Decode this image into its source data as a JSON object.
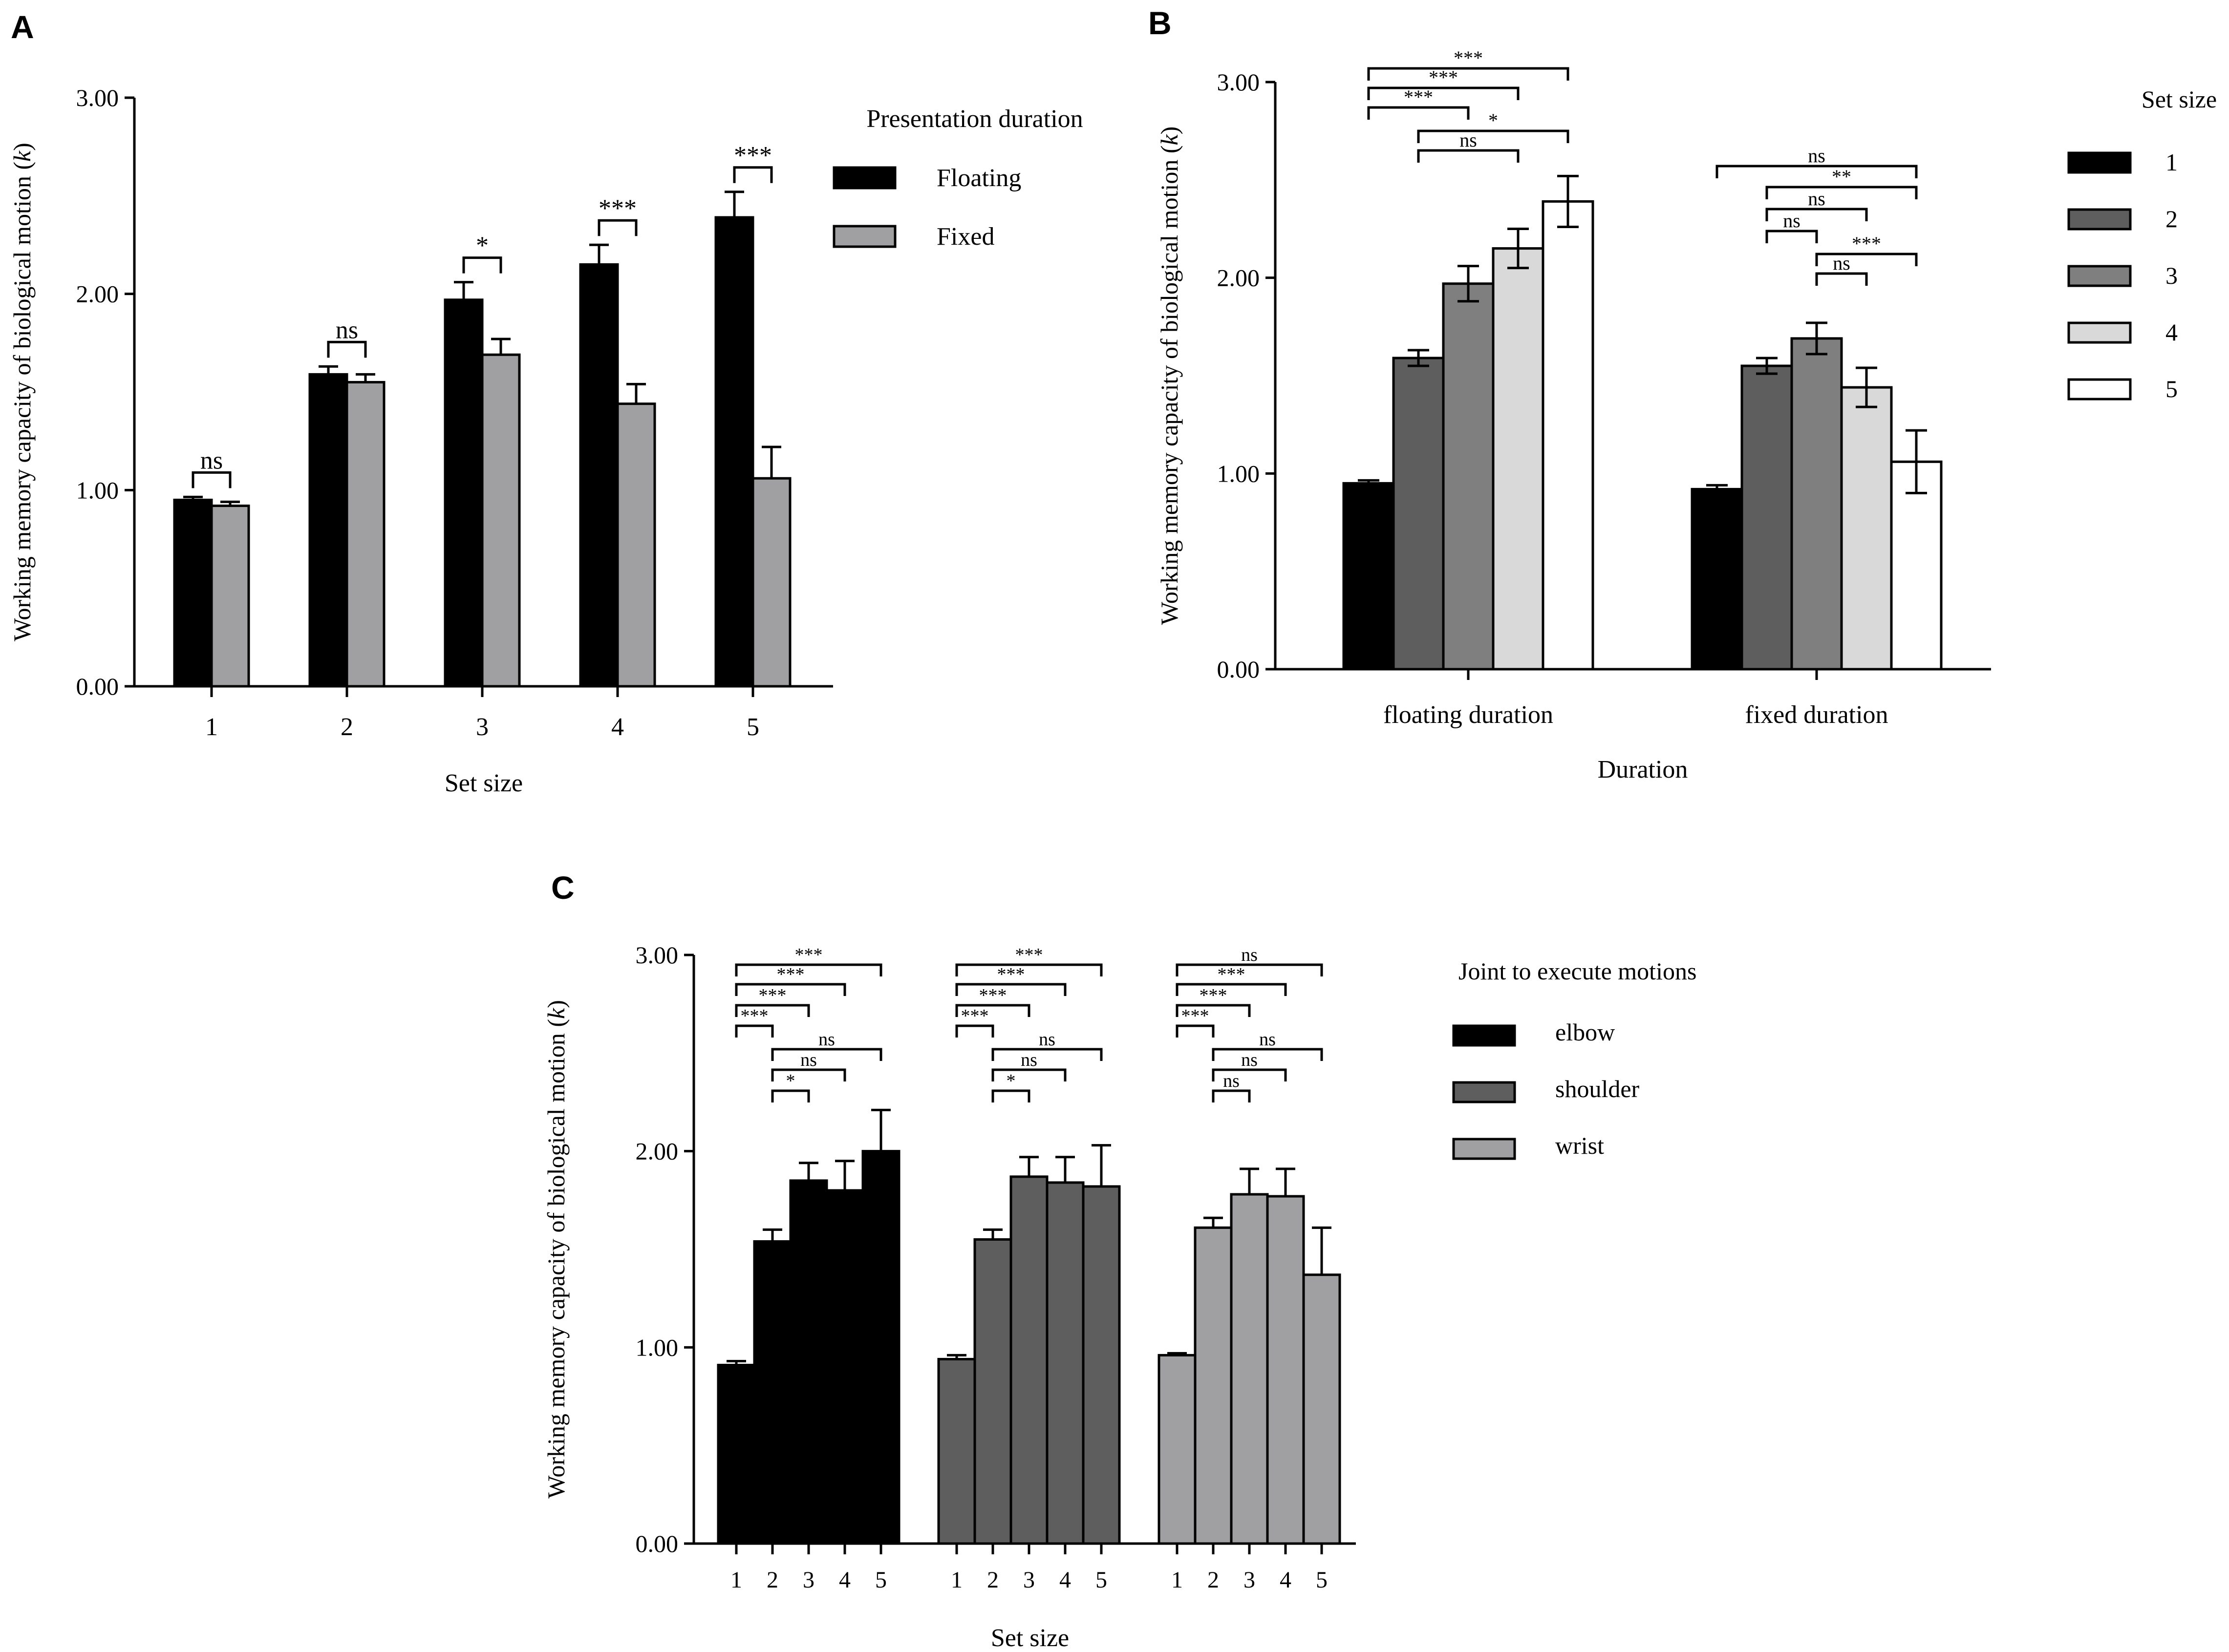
{
  "colors": {
    "black": "#000000",
    "dark_gray": "#5e5e5e",
    "mid_gray": "#7f7f7f",
    "gray": "#a0a0a2",
    "light_gray": "#d9d9d9",
    "white": "#ffffff"
  },
  "chart_data": [
    {
      "panel_label": "A",
      "type": "bar",
      "title": "",
      "xlabel": "Set size",
      "ylabel_prefix": "Working memory capacity of  biological motion (",
      "ylabel_var": "k",
      "ylabel_suffix": ")",
      "ylim": [
        0,
        3
      ],
      "yticks": [
        "0.00",
        "1.00",
        "2.00",
        "3.00"
      ],
      "categories": [
        "1",
        "2",
        "3",
        "4",
        "5"
      ],
      "legend_title": "Presentation duration",
      "legend_position": "top-right",
      "series": [
        {
          "name": "Floating",
          "color": "#000000",
          "values": [
            0.95,
            1.59,
            1.97,
            2.15,
            2.39
          ],
          "errors": [
            0.015,
            0.04,
            0.09,
            0.1,
            0.13
          ]
        },
        {
          "name": "Fixed",
          "color": "#a0a0a2",
          "values": [
            0.92,
            1.55,
            1.69,
            1.44,
            1.06
          ],
          "errors": [
            0.02,
            0.04,
            0.08,
            0.1,
            0.16
          ]
        }
      ],
      "annotations": [
        {
          "category": "1",
          "text": "ns"
        },
        {
          "category": "2",
          "text": "ns"
        },
        {
          "category": "3",
          "text": "*"
        },
        {
          "category": "4",
          "text": "***"
        },
        {
          "category": "5",
          "text": "***"
        }
      ]
    },
    {
      "panel_label": "B",
      "type": "bar",
      "title": "",
      "xlabel": "Duration",
      "ylabel_prefix": "Working memory capacity of  biological motion (",
      "ylabel_var": "k",
      "ylabel_suffix": ")",
      "ylim": [
        0,
        3
      ],
      "yticks": [
        "0.00",
        "1.00",
        "2.00",
        "3.00"
      ],
      "categories": [
        "floating duration",
        "fixed duration"
      ],
      "legend_title": "Set size",
      "legend_position": "right",
      "series": [
        {
          "name": "1",
          "color": "#000000",
          "values": [
            0.95,
            0.92
          ],
          "errors": [
            0.015,
            0.02
          ]
        },
        {
          "name": "2",
          "color": "#5e5e5e",
          "values": [
            1.59,
            1.55
          ],
          "errors": [
            0.04,
            0.04
          ]
        },
        {
          "name": "3",
          "color": "#7f7f7f",
          "values": [
            1.97,
            1.69
          ],
          "errors": [
            0.09,
            0.08
          ]
        },
        {
          "name": "4",
          "color": "#d9d9d9",
          "values": [
            2.15,
            1.44
          ],
          "errors": [
            0.1,
            0.1
          ]
        },
        {
          "name": "5",
          "color": "#ffffff",
          "values": [
            2.39,
            1.06
          ],
          "errors": [
            0.13,
            0.16
          ]
        }
      ],
      "annotations": [
        {
          "group": "floating duration",
          "from": "1",
          "to": "5",
          "text": "***"
        },
        {
          "group": "floating duration",
          "from": "1",
          "to": "4",
          "text": "***"
        },
        {
          "group": "floating duration",
          "from": "1",
          "to": "3",
          "text": "***"
        },
        {
          "group": "floating duration",
          "from": "2",
          "to": "5",
          "text": "*"
        },
        {
          "group": "floating duration",
          "from": "2",
          "to": "4",
          "text": "ns"
        },
        {
          "group": "fixed duration",
          "from": "1",
          "to": "5",
          "text": "ns"
        },
        {
          "group": "fixed duration",
          "from": "2",
          "to": "5",
          "text": "**"
        },
        {
          "group": "fixed duration",
          "from": "2",
          "to": "4",
          "text": "ns"
        },
        {
          "group": "fixed duration",
          "from": "2",
          "to": "3",
          "text": "ns"
        },
        {
          "group": "fixed duration",
          "from": "3",
          "to": "5",
          "text": "***"
        },
        {
          "group": "fixed duration",
          "from": "3",
          "to": "4",
          "text": "ns"
        }
      ]
    },
    {
      "panel_label": "C",
      "type": "bar",
      "title": "",
      "xlabel": "Set size",
      "ylabel_prefix": "Working memory capacity of  biological motion (",
      "ylabel_var": "k",
      "ylabel_suffix": ")",
      "ylim": [
        0,
        3
      ],
      "yticks": [
        "0.00",
        "1.00",
        "2.00",
        "3.00"
      ],
      "categories": [
        "1",
        "2",
        "3",
        "4",
        "5"
      ],
      "legend_title": "Joint to execute motions",
      "legend_position": "right",
      "series": [
        {
          "name": "elbow",
          "color": "#000000",
          "values": [
            0.91,
            1.54,
            1.85,
            1.8,
            2.0
          ],
          "errors": [
            0.02,
            0.06,
            0.09,
            0.15,
            0.21
          ]
        },
        {
          "name": "shoulder",
          "color": "#5e5e5e",
          "values": [
            0.94,
            1.55,
            1.87,
            1.84,
            1.82
          ],
          "errors": [
            0.02,
            0.05,
            0.1,
            0.13,
            0.21
          ]
        },
        {
          "name": "wrist",
          "color": "#a0a0a2",
          "values": [
            0.96,
            1.61,
            1.78,
            1.77,
            1.37
          ],
          "errors": [
            0.01,
            0.05,
            0.13,
            0.14,
            0.24
          ]
        }
      ],
      "annotations": [
        {
          "group": "elbow",
          "from": "1",
          "to": "5",
          "text": "***"
        },
        {
          "group": "elbow",
          "from": "1",
          "to": "4",
          "text": "***"
        },
        {
          "group": "elbow",
          "from": "1",
          "to": "3",
          "text": "***"
        },
        {
          "group": "elbow",
          "from": "1",
          "to": "2",
          "text": "***"
        },
        {
          "group": "elbow",
          "from": "2",
          "to": "5",
          "text": "ns"
        },
        {
          "group": "elbow",
          "from": "2",
          "to": "4",
          "text": "ns"
        },
        {
          "group": "elbow",
          "from": "2",
          "to": "3",
          "text": "*"
        },
        {
          "group": "shoulder",
          "from": "1",
          "to": "5",
          "text": "***"
        },
        {
          "group": "shoulder",
          "from": "1",
          "to": "4",
          "text": "***"
        },
        {
          "group": "shoulder",
          "from": "1",
          "to": "3",
          "text": "***"
        },
        {
          "group": "shoulder",
          "from": "1",
          "to": "2",
          "text": "***"
        },
        {
          "group": "shoulder",
          "from": "2",
          "to": "5",
          "text": "ns"
        },
        {
          "group": "shoulder",
          "from": "2",
          "to": "4",
          "text": "ns"
        },
        {
          "group": "shoulder",
          "from": "2",
          "to": "3",
          "text": "*"
        },
        {
          "group": "wrist",
          "from": "1",
          "to": "5",
          "text": "ns"
        },
        {
          "group": "wrist",
          "from": "1",
          "to": "4",
          "text": "***"
        },
        {
          "group": "wrist",
          "from": "1",
          "to": "3",
          "text": "***"
        },
        {
          "group": "wrist",
          "from": "1",
          "to": "2",
          "text": "***"
        },
        {
          "group": "wrist",
          "from": "2",
          "to": "5",
          "text": "ns"
        },
        {
          "group": "wrist",
          "from": "2",
          "to": "4",
          "text": "ns"
        },
        {
          "group": "wrist",
          "from": "2",
          "to": "3",
          "text": "ns"
        }
      ]
    }
  ]
}
